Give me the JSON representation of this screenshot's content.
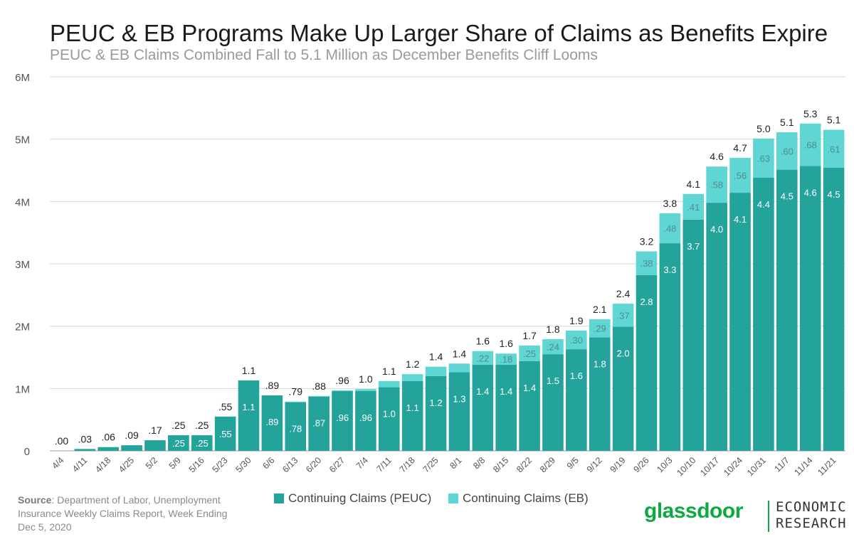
{
  "title": "PEUC & EB Programs Make Up Larger Share of Claims as Benefits Expire",
  "subtitle": "PEUC & EB Claims Combined Fall to 5.1 Million as December Benefits Cliff Looms",
  "source": {
    "label": "Source",
    "text": ": Department of Labor, Unemployment Insurance Weekly Claims Report, Week Ending Dec 5, 2020"
  },
  "brand": {
    "name": "glassdoor",
    "line1": "ECONOMIC",
    "line2": "RESEARCH"
  },
  "colors": {
    "peuc": "#24a39a",
    "eb": "#5fd6d3",
    "grid": "#d9d9d9",
    "brand": "#0caa41"
  },
  "chart_data": {
    "type": "bar",
    "stacked": true,
    "ylim": [
      0,
      6
    ],
    "yticks": [
      0,
      1,
      2,
      3,
      4,
      5,
      6
    ],
    "ytick_labels": [
      "0",
      "1M",
      "2M",
      "3M",
      "4M",
      "5M",
      "6M"
    ],
    "grid": true,
    "legend_position": "bottom",
    "categories": [
      "4/4",
      "4/11",
      "4/18",
      "4/25",
      "5/2",
      "5/9",
      "5/16",
      "5/23",
      "5/30",
      "6/6",
      "6/13",
      "6/20",
      "6/27",
      "7/4",
      "7/11",
      "7/18",
      "7/25",
      "8/1",
      "8/8",
      "8/15",
      "8/22",
      "8/29",
      "9/5",
      "9/12",
      "9/19",
      "9/26",
      "10/3",
      "10/10",
      "10/17",
      "10/24",
      "10/31",
      "11/7",
      "11/14",
      "11/21"
    ],
    "series": [
      {
        "name": "Continuing Claims (PEUC)",
        "values": [
          0.0,
          0.03,
          0.06,
          0.09,
          0.17,
          0.25,
          0.25,
          0.55,
          1.13,
          0.89,
          0.78,
          0.87,
          0.96,
          0.96,
          1.02,
          1.12,
          1.2,
          1.26,
          1.38,
          1.38,
          1.44,
          1.55,
          1.63,
          1.82,
          1.99,
          2.82,
          3.33,
          3.71,
          3.98,
          4.14,
          4.38,
          4.51,
          4.57,
          4.54
        ],
        "labels": [
          "",
          "",
          "",
          "",
          "",
          ".25",
          ".25",
          ".55",
          "1.1",
          ".89",
          ".78",
          ".87",
          ".96",
          ".96",
          "1.0",
          "1.1",
          "1.2",
          "1.3",
          "1.4",
          "1.4",
          "1.4",
          "1.5",
          "1.6",
          "1.8",
          "2.0",
          "2.8",
          "3.3",
          "3.7",
          "4.0",
          "4.1",
          "4.4",
          "4.5",
          "4.6",
          "4.5"
        ]
      },
      {
        "name": "Continuing Claims (EB)",
        "values": [
          0,
          0,
          0,
          0,
          0,
          0,
          0,
          0,
          0,
          0,
          0.01,
          0.01,
          0.01,
          0.03,
          0.1,
          0.11,
          0.15,
          0.14,
          0.22,
          0.18,
          0.25,
          0.24,
          0.3,
          0.29,
          0.37,
          0.38,
          0.48,
          0.41,
          0.58,
          0.56,
          0.63,
          0.6,
          0.68,
          0.61
        ],
        "labels": [
          "",
          "",
          "",
          "",
          "",
          "",
          "",
          "",
          "",
          "",
          "",
          "",
          "",
          "",
          "",
          "",
          "",
          "",
          ".22",
          ".18",
          ".25",
          ".24",
          ".30",
          ".29",
          ".37",
          ".38",
          ".48",
          ".41",
          ".58",
          ".56",
          ".63",
          ".60",
          ".68",
          ".61"
        ]
      }
    ],
    "total_labels": [
      ".00",
      ".03",
      ".06",
      ".09",
      ".17",
      ".25",
      ".25",
      ".55",
      "1.1",
      ".89",
      ".79",
      ".88",
      ".96",
      "1.0",
      "1.1",
      "1.2",
      "1.4",
      "1.4",
      "1.6",
      "1.6",
      "1.7",
      "1.8",
      "1.9",
      "2.1",
      "2.4",
      "3.2",
      "3.8",
      "4.1",
      "4.6",
      "4.7",
      "5.0",
      "5.1",
      "5.3",
      "5.1"
    ]
  }
}
